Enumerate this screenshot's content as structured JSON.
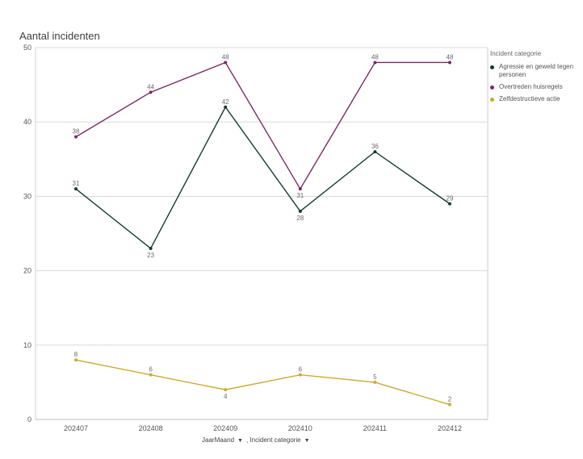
{
  "chart_data": {
    "type": "line",
    "title": "Aantal incidenten",
    "categories": [
      "202407",
      "202408",
      "202409",
      "202410",
      "202411",
      "202412"
    ],
    "ylim": [
      0,
      50
    ],
    "yticks": [
      0,
      10,
      20,
      30,
      40,
      50
    ],
    "grid": true,
    "legend_title": "Incident categorie",
    "legend_position": "right",
    "series": [
      {
        "name": "Agressie en geweld tegen personen",
        "color": "#123d33",
        "values": [
          31,
          23,
          42,
          28,
          36,
          29
        ],
        "label_position": [
          "above",
          "below",
          "above",
          "below",
          "above",
          "above"
        ]
      },
      {
        "name": "Overtreden huisregels",
        "color": "#7b2866",
        "values": [
          38,
          44,
          48,
          31,
          48,
          48
        ],
        "label_position": [
          "above",
          "above",
          "above",
          "below",
          "above",
          "above"
        ]
      },
      {
        "name": "Zelfdestructieve actie",
        "color": "#d1a92a",
        "values": [
          8,
          6,
          4,
          6,
          5,
          2
        ],
        "label_position": [
          "above",
          "above",
          "below",
          "above",
          "above",
          "above"
        ]
      }
    ],
    "xlabel_parts": [
      "JaarMaand",
      ", Incident categorie"
    ]
  }
}
